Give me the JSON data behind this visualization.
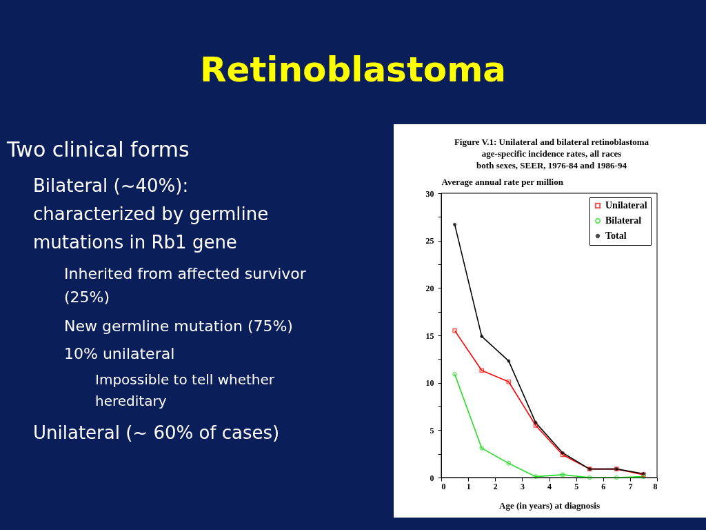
{
  "chart_data": {
    "type": "line",
    "title": "Retinoblastoma",
    "subtitle": "Figure V.1: Unilateral and bilateral retinoblastoma\nage-specific incidence rates, all races\nboth sexes, SEER, 1976-84 and 1986-94",
    "xlabel": "Age (in years) at diagnosis",
    "ylabel": "Average annual rate per million",
    "x": [
      0.5,
      1.5,
      2.5,
      3.5,
      4.5,
      5.5,
      6.5,
      7.5
    ],
    "series": [
      {
        "name": "Unilateral",
        "color": "#ff0000",
        "marker": "square",
        "values": [
          15.5,
          11.3,
          10.1,
          5.5,
          2.4,
          0.9,
          0.9,
          0.3
        ]
      },
      {
        "name": "Bilateral",
        "color": "#22dd22",
        "marker": "circle",
        "values": [
          10.9,
          3.1,
          1.5,
          0.1,
          0.3,
          0.0,
          0.0,
          0.1
        ]
      },
      {
        "name": "Total",
        "color": "#000000",
        "marker": "cross",
        "values": [
          26.7,
          14.9,
          12.3,
          5.8,
          2.6,
          0.9,
          0.9,
          0.4
        ]
      }
    ],
    "xlim": [
      0,
      8
    ],
    "xticks": [
      0,
      1,
      2,
      3,
      4,
      5,
      6,
      7,
      8
    ],
    "ylim": [
      0,
      30
    ],
    "yticks": [
      0,
      {
        "value": 2.5,
        "label": null
      },
      5,
      {
        "value": 7.5,
        "label": null
      },
      10,
      {
        "value": 12.5,
        "label": null
      },
      15,
      {
        "value": 17.5,
        "label": null
      },
      20,
      {
        "value": 22.5,
        "label": null
      },
      25,
      {
        "value": 27.5,
        "label": null
      },
      30
    ],
    "grid": false,
    "legend": "top right",
    "line_style": "solid",
    "annotations": [
      "Two clinical forms",
      "Bilateral (~40%): characterized by germline mutations in Rb1 gene",
      "Inherited from affected survivor (25%)",
      "New germline mutation (75%)",
      "10% unilateral",
      "Impossible to tell whether hereditary",
      "Unilateral (~ 60% of cases)"
    ]
  }
}
